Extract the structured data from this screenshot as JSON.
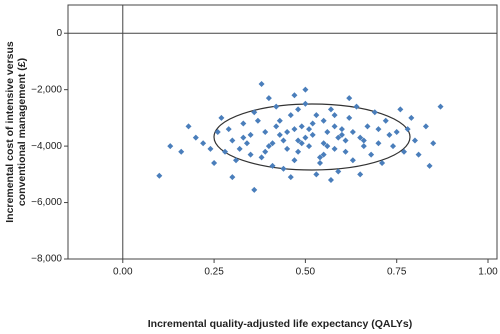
{
  "chart_data": {
    "type": "scatter",
    "xlabel": "Incremental quality-adjusted life expectancy (QALYs)",
    "ylabel": [
      "Incremental cost of intensive versus",
      "conventional management (£)"
    ],
    "xlim": [
      -0.15,
      1.0
    ],
    "ylim": [
      -8000,
      1000
    ],
    "xticks": [
      {
        "value": 0,
        "label": "0.00"
      },
      {
        "value": 0.25,
        "label": "0.25"
      },
      {
        "value": 0.5,
        "label": "0.50"
      },
      {
        "value": 0.75,
        "label": "0.75"
      },
      {
        "value": 1,
        "label": "1.00"
      }
    ],
    "yticks": [
      {
        "value": -8000,
        "label": "−8,000"
      },
      {
        "value": -6000,
        "label": "−6,000"
      },
      {
        "value": -4000,
        "label": "−4,000"
      },
      {
        "value": -2000,
        "label": "−2,000"
      },
      0
    ],
    "grid": false,
    "series": [
      {
        "color": "#4a7ebb",
        "x": [
          0.5,
          0.45,
          0.55,
          0.6,
          0.4,
          0.52,
          0.48,
          0.58,
          0.42,
          0.65,
          0.35,
          0.7,
          0.3,
          0.62,
          0.38,
          0.54,
          0.46,
          0.68,
          0.33,
          0.75,
          0.28,
          0.57,
          0.44,
          0.72,
          0.26,
          0.8,
          0.5,
          0.53,
          0.64,
          0.36,
          0.41,
          0.77,
          0.22,
          0.83,
          0.47,
          0.59,
          0.31,
          0.69,
          0.56,
          0.49,
          0.51,
          0.43,
          0.61,
          0.39,
          0.66,
          0.34,
          0.73,
          0.29,
          0.58,
          0.47,
          0.55,
          0.63,
          0.37,
          0.45,
          0.52,
          0.6,
          0.48,
          0.67,
          0.32,
          0.74,
          0.25,
          0.79,
          0.53,
          0.42,
          0.71,
          0.27,
          0.85,
          0.2,
          0.57,
          0.46,
          0.62,
          0.4,
          0.5,
          0.38,
          0.87,
          0.1,
          0.13,
          0.36,
          0.84,
          0.16,
          0.18,
          0.76,
          0.65,
          0.3,
          0.54,
          0.49,
          0.44,
          0.59,
          0.41,
          0.63,
          0.35,
          0.7,
          0.56,
          0.51,
          0.47,
          0.58,
          0.43,
          0.66,
          0.33,
          0.78,
          0.24,
          0.81,
          0.55,
          0.39,
          0.61,
          0.48
        ],
        "values": [
          -3700,
          -3500,
          -3900,
          -3400,
          -4000,
          -3200,
          -4200,
          -4100,
          -3300,
          -3700,
          -3600,
          -3900,
          -3800,
          -3000,
          -4400,
          -4600,
          -2900,
          -4300,
          -3200,
          -3500,
          -4200,
          -2700,
          -4800,
          -3100,
          -3500,
          -3800,
          -2500,
          -5000,
          -2600,
          -2800,
          -4700,
          -4200,
          -3900,
          -3300,
          -2200,
          -4900,
          -4500,
          -2800,
          -3500,
          -3900,
          -4000,
          -3600,
          -3800,
          -3500,
          -4000,
          -3900,
          -3600,
          -3400,
          -3300,
          -3400,
          -4300,
          -4500,
          -3100,
          -4100,
          -3600,
          -3600,
          -3800,
          -3300,
          -4100,
          -4000,
          -4600,
          -3000,
          -2900,
          -2600,
          -4600,
          -3000,
          -3900,
          -3700,
          -5200,
          -5100,
          -2300,
          -2300,
          -2000,
          -1800,
          -2600,
          -5050,
          -4000,
          -5550,
          -4700,
          -4200,
          -3300,
          -2700,
          -5000,
          -5100,
          -4400,
          -3300,
          -3800,
          -3700,
          -3900,
          -3500,
          -4300,
          -3400,
          -4000,
          -3400,
          -4500,
          -2900,
          -3100,
          -3800,
          -3700,
          -3400,
          -4100,
          -4300,
          -3100,
          -4200,
          -4200,
          -2700
        ]
      }
    ]
  }
}
